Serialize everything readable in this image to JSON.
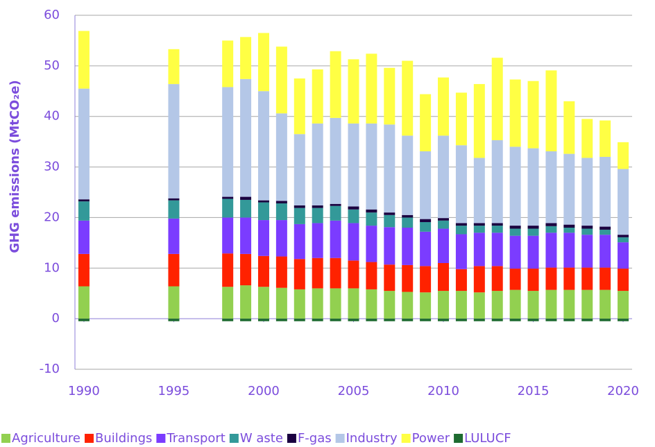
{
  "chart_data": {
    "type": "stacked_bar",
    "y_label": "GHG emissions (MtCO₂e)",
    "x": [
      1990,
      1995,
      1998,
      1999,
      2000,
      2001,
      2002,
      2003,
      2004,
      2005,
      2006,
      2007,
      2008,
      2009,
      2010,
      2011,
      2012,
      2013,
      2014,
      2015,
      2016,
      2017,
      2018,
      2019,
      2020
    ],
    "xlim": [
      1989.5,
      2020.5
    ],
    "xticks": [
      1990,
      1995,
      2000,
      2005,
      2010,
      2015,
      2020
    ],
    "ylim": [
      -10,
      60
    ],
    "yticks": [
      -10,
      0,
      10,
      20,
      30,
      40,
      50,
      60
    ],
    "grid": true,
    "legend": "bottom",
    "series": [
      {
        "name": "Agriculture",
        "color": "#92d050",
        "values": [
          6.4,
          6.4,
          6.3,
          6.6,
          6.3,
          6.1,
          5.8,
          6.0,
          6.0,
          6.0,
          5.8,
          5.5,
          5.3,
          5.2,
          5.5,
          5.5,
          5.2,
          5.5,
          5.7,
          5.5,
          5.7,
          5.7,
          5.7,
          5.7,
          5.5
        ]
      },
      {
        "name": "Buildings",
        "color": "#ff2200",
        "values": [
          6.4,
          6.4,
          6.6,
          6.2,
          6.1,
          6.2,
          6.0,
          6.0,
          6.0,
          5.5,
          5.4,
          5.2,
          5.3,
          5.2,
          5.5,
          4.3,
          5.2,
          4.9,
          4.2,
          4.4,
          4.4,
          4.4,
          4.4,
          4.4,
          4.4
        ]
      },
      {
        "name": "Transport",
        "color": "#7b3cff",
        "values": [
          6.6,
          7.0,
          7.1,
          7.2,
          7.1,
          7.2,
          6.9,
          6.9,
          7.4,
          7.4,
          7.2,
          7.4,
          7.4,
          6.8,
          6.8,
          6.9,
          6.6,
          6.6,
          6.5,
          6.5,
          6.9,
          6.9,
          6.5,
          6.5,
          5.2
        ]
      },
      {
        "name": "W aste",
        "color": "#339999",
        "values": [
          3.8,
          3.6,
          3.7,
          3.5,
          3.5,
          3.3,
          3.2,
          3.0,
          2.9,
          2.7,
          2.6,
          2.4,
          2.0,
          1.9,
          1.6,
          1.7,
          1.4,
          1.4,
          1.4,
          1.4,
          1.3,
          1.0,
          1.2,
          1.0,
          1.0
        ]
      },
      {
        "name": "F-gas",
        "color": "#1a0040",
        "values": [
          0.4,
          0.4,
          0.4,
          0.6,
          0.4,
          0.5,
          0.5,
          0.5,
          0.4,
          0.6,
          0.6,
          0.5,
          0.5,
          0.6,
          0.5,
          0.5,
          0.5,
          0.5,
          0.6,
          0.6,
          0.6,
          0.6,
          0.6,
          0.6,
          0.5
        ]
      },
      {
        "name": "Industry",
        "color": "#b4c7e7",
        "values": [
          21.9,
          22.6,
          21.7,
          23.3,
          21.6,
          17.3,
          14.1,
          16.2,
          17.0,
          16.4,
          17.0,
          17.4,
          15.7,
          13.4,
          16.3,
          15.4,
          12.9,
          16.4,
          15.6,
          15.3,
          14.2,
          14.0,
          13.4,
          13.8,
          13.0
        ]
      },
      {
        "name": "Power",
        "color": "#ffff44",
        "values": [
          11.4,
          6.9,
          9.2,
          8.3,
          11.5,
          13.2,
          11.0,
          10.7,
          13.2,
          12.7,
          13.8,
          11.2,
          14.8,
          11.3,
          11.5,
          10.4,
          14.6,
          16.3,
          13.3,
          13.3,
          16.0,
          10.4,
          7.7,
          7.2,
          5.3
        ]
      },
      {
        "name": "LULUCF",
        "color": "#1e6b30",
        "values": [
          -0.5,
          -0.5,
          -0.5,
          -0.5,
          -0.5,
          -0.5,
          -0.5,
          -0.5,
          -0.5,
          -0.5,
          -0.5,
          -0.5,
          -0.5,
          -0.5,
          -0.5,
          -0.5,
          -0.5,
          -0.5,
          -0.5,
          -0.5,
          -0.5,
          -0.5,
          -0.5,
          -0.5,
          -0.5
        ]
      }
    ]
  }
}
